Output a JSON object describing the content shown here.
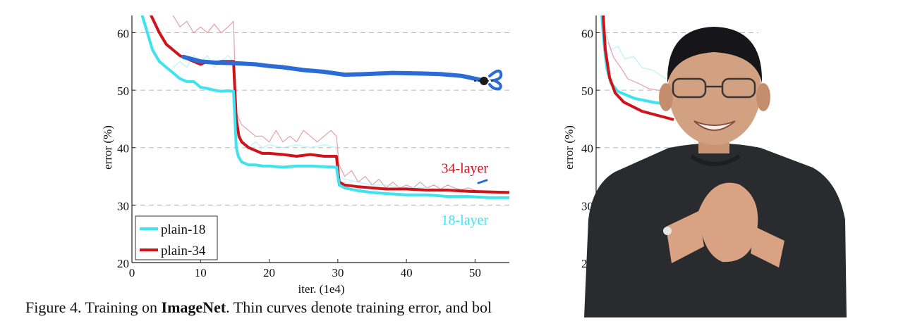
{
  "caption": {
    "prefix": "Figure 4. Training on ",
    "bold": "ImageNet",
    "suffix": ". Thin curves denote training error, and bol"
  },
  "chart_data": [
    {
      "type": "line",
      "xlabel": "iter. (1e4)",
      "ylabel": "error (%)",
      "xlim": [
        0,
        55
      ],
      "ylim": [
        20,
        63
      ],
      "x_ticks": [
        "0",
        "10",
        "20",
        "30",
        "40",
        "50"
      ],
      "y_ticks": [
        "20",
        "30",
        "40",
        "50",
        "60"
      ],
      "grid": "horizontal dashed",
      "legend_position": "bottom-left",
      "annotations": [
        {
          "text": "34-layer",
          "color": "#d0121b",
          "x": 48.5,
          "y": 36.5
        },
        {
          "text": "18-layer",
          "color": "#3fe3ef",
          "x": 48.5,
          "y": 27.5
        }
      ],
      "series": [
        {
          "name": "plain-18",
          "color": "#3fe3ef",
          "style": "thick",
          "x": [
            1.5,
            3,
            4,
            5,
            6,
            7,
            8,
            9,
            10,
            11,
            12,
            13,
            14,
            14.8,
            15.2,
            15.5,
            16,
            17,
            18,
            19,
            20,
            22,
            24,
            26,
            28,
            29.8,
            30.2,
            31,
            33,
            35,
            37,
            40,
            43,
            46,
            49,
            52,
            55
          ],
          "y": [
            63,
            57,
            55,
            54,
            53,
            52,
            51.5,
            51.5,
            50.5,
            50.3,
            50,
            49.8,
            49.9,
            49.8,
            40,
            38.5,
            37.5,
            37,
            37,
            36.8,
            36.8,
            36.6,
            36.8,
            36.8,
            36.7,
            36.6,
            33.5,
            33,
            32.5,
            32.2,
            32,
            31.8,
            31.8,
            31.5,
            31.5,
            31.3,
            31.3
          ]
        },
        {
          "name": "plain-34",
          "color": "#d0121b",
          "style": "thick",
          "x": [
            2.8,
            4,
            5,
            6,
            7,
            8,
            9,
            10,
            11,
            12,
            13,
            14,
            14.8,
            15.2,
            15.6,
            16,
            17,
            18,
            19,
            20,
            22,
            24,
            26,
            28,
            29.8,
            30.2,
            31,
            33,
            35,
            37,
            40,
            43,
            46,
            49,
            52,
            55
          ],
          "y": [
            63,
            60,
            58,
            57,
            56,
            55.5,
            55,
            54.5,
            55,
            54.8,
            55,
            55,
            55,
            45,
            42,
            41,
            40,
            39.5,
            39,
            39,
            38.8,
            38.5,
            38.8,
            38.5,
            38.5,
            34,
            33.5,
            33.2,
            33,
            32.8,
            32.8,
            32.6,
            32.6,
            32.4,
            32.3,
            32.2
          ]
        },
        {
          "name": "",
          "color": "#e4a0a6",
          "style": "thin",
          "x": [
            6,
            7,
            8,
            9,
            10,
            11,
            12,
            13,
            14,
            14.8,
            15.2,
            16,
            17,
            18,
            19,
            20,
            21,
            22,
            23,
            24,
            25,
            26,
            27,
            28,
            29,
            29.8,
            30.2,
            31,
            32,
            33,
            34,
            35,
            36,
            37,
            38,
            39,
            40,
            41,
            42,
            43,
            44,
            45,
            46,
            47,
            48,
            49,
            50
          ],
          "y": [
            63,
            61,
            62,
            60,
            61,
            60,
            61.5,
            60,
            61,
            62,
            46,
            44,
            43,
            42,
            42,
            41,
            43,
            41,
            42,
            41,
            43,
            42,
            41,
            42,
            43,
            42,
            37,
            35,
            36,
            34,
            35,
            33.5,
            34.5,
            33,
            34,
            33,
            33.5,
            33,
            34,
            33,
            33.5,
            32.8,
            33.5,
            33,
            32.7,
            33,
            32.6
          ]
        },
        {
          "name": "",
          "color": "#b8f2f6",
          "style": "thin",
          "x": [
            6,
            7,
            8,
            9,
            10,
            11,
            12,
            13,
            14,
            14.8,
            15.2,
            16,
            17,
            18,
            19,
            20,
            22,
            24,
            26,
            28,
            29.8,
            30.2,
            31,
            33,
            35,
            37,
            40,
            43,
            46,
            49
          ],
          "y": [
            54,
            55,
            54,
            56,
            55,
            56,
            54,
            55,
            56,
            55,
            42,
            41,
            40,
            41,
            40,
            40.5,
            40,
            40.5,
            40,
            40.5,
            40,
            35,
            34.5,
            34,
            33.5,
            33.5,
            33,
            33,
            32.7,
            32.6
          ]
        },
        {
          "name": "",
          "color": "#2a6bd6",
          "style": "marker-stroke",
          "x": [
            7.5,
            10,
            12,
            15,
            18,
            20,
            22,
            25,
            28,
            31,
            34,
            38,
            42,
            45,
            48,
            50,
            51.5
          ],
          "y": [
            55.8,
            55,
            54.8,
            54.7,
            54.5,
            54.2,
            54,
            53.5,
            53.2,
            52.7,
            52.8,
            53,
            52.9,
            52.8,
            52.5,
            52,
            51.6
          ]
        }
      ]
    },
    {
      "type": "line",
      "xlabel": "",
      "ylabel": "error (%)",
      "ylim": [
        20,
        63
      ],
      "y_ticks": [
        "20",
        "30",
        "40",
        "50",
        "60"
      ],
      "grid": "horizontal dashed"
    }
  ]
}
